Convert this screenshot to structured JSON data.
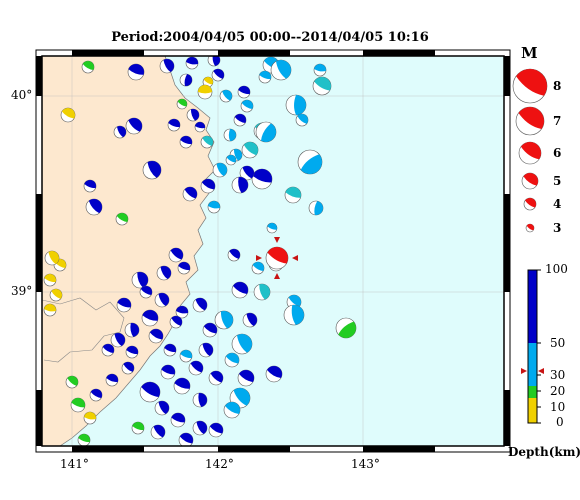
{
  "title": "Period:2004/04/05 00:00--2014/04/05 10:16",
  "lat_labels": [
    "40°",
    "39°"
  ],
  "lon_labels": [
    "141°",
    "142°",
    "143°"
  ],
  "magnitude": {
    "title": "M",
    "levels": [
      "8",
      "7",
      "6",
      "5",
      "4",
      "3"
    ]
  },
  "depth_scale": {
    "title": "Depth(km)",
    "ticks": [
      "100",
      "50",
      "30",
      "20",
      "10",
      "0"
    ],
    "marker_value": 35,
    "colors": {
      "deep": "#0000c8",
      "mid": "#00aaee",
      "teal": "#20c0c8",
      "shallow_green": "#22cc22",
      "shallow_yellow": "#f0d000"
    }
  },
  "colors": {
    "land": "#fde8cf",
    "sea": "#dffcfc",
    "highlight": "#ee1111",
    "frame": "#000000"
  },
  "events_color_legend": "deep=dark blue, mid=light blue, shallow=green/yellow",
  "icons": [
    "beachball-icon",
    "red-arrow-icon"
  ]
}
